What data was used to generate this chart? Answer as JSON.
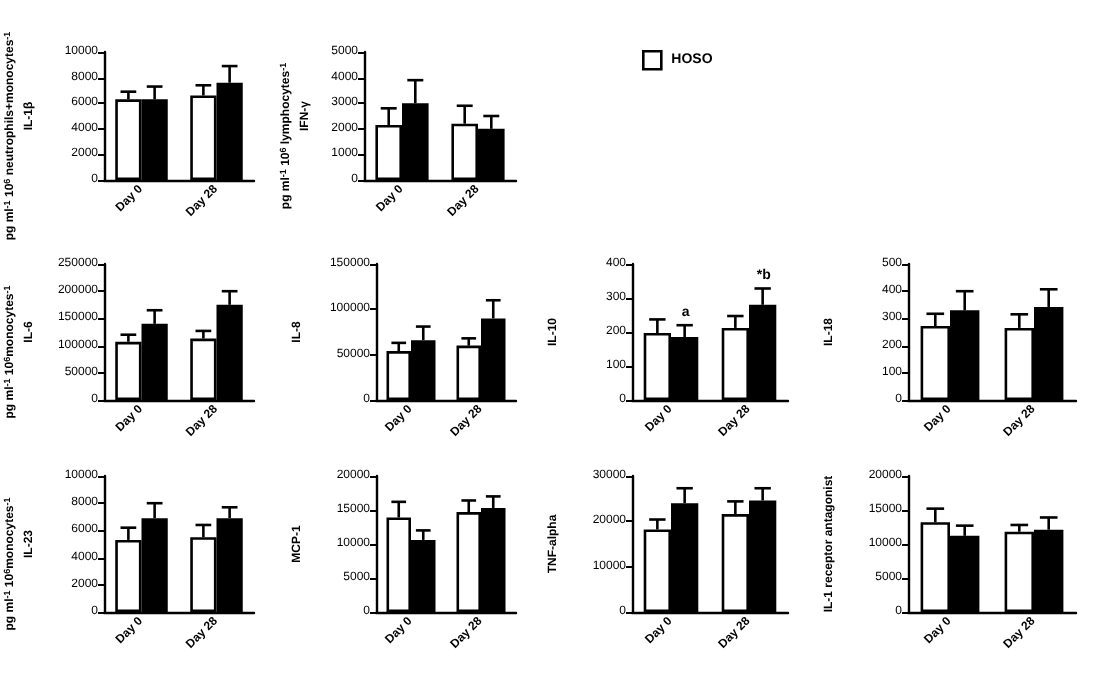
{
  "chart_data": [
    {
      "type": "bar",
      "ylabel": "IL-1β",
      "categories": [
        "Day 0",
        "Day 28"
      ],
      "ylim": [
        0,
        10000
      ],
      "yticks": [
        0,
        2000,
        4000,
        6000,
        8000,
        10000
      ],
      "grid": false,
      "legend": false,
      "annotations": [
        "pg ml$^{-1}$ 10$^{6}$ neutrophils+monocytes$^{-1}$"
      ],
      "series": [
        {
          "color": "#ffffff",
          "values": [
            6300,
            6600
          ],
          "errors": [
            [
              6300,
              6900
            ],
            [
              6600,
              7400
            ]
          ]
        },
        {
          "color": "#000000",
          "values": [
            6300,
            7600
          ],
          "errors": [
            [
              6300,
              7300
            ],
            [
              7600,
              8900
            ]
          ]
        }
      ]
    },
    {
      "type": "bar",
      "ylabel": "IFN-γ",
      "categories": [
        "Day 0",
        "Day 28"
      ],
      "ylim": [
        0,
        5000
      ],
      "yticks": [
        0,
        1000,
        2000,
        3000,
        4000,
        5000
      ],
      "grid": false,
      "legend": "right",
      "annotations": [
        "pg ml$^{-1}$ 10$^{6}$ lymphocytes$^{-1}$"
      ],
      "series": [
        {
          "name": "HOSO",
          "color": "#ffffff",
          "values": [
            2150,
            2200
          ],
          "errors": [
            [
              2150,
              2800
            ],
            [
              2200,
              2900
            ]
          ]
        },
        {
          "color": "#000000",
          "values": [
            3000,
            2000
          ],
          "errors": [
            [
              3000,
              3900
            ],
            [
              2000,
              2500
            ]
          ]
        }
      ]
    },
    {
      "type": "bar",
      "ylabel": "IL-6",
      "categories": [
        "Day 0",
        "Day 28"
      ],
      "ylim": [
        0,
        250000
      ],
      "yticks": [
        0,
        50000,
        100000,
        150000,
        200000,
        250000
      ],
      "grid": false,
      "legend": false,
      "annotations": [
        "pg ml$^{-1}$ 10$^{6}$monocytes$^{-1}$"
      ],
      "series": [
        {
          "color": "#ffffff",
          "values": [
            107000,
            113000
          ],
          "errors": [
            [
              107000,
              120000
            ],
            [
              113000,
              127000
            ]
          ]
        },
        {
          "color": "#000000",
          "values": [
            140000,
            175000
          ],
          "errors": [
            [
              140000,
              165000
            ],
            [
              175000,
              200000
            ]
          ]
        }
      ]
    },
    {
      "type": "bar",
      "ylabel": "IL-8",
      "categories": [
        "Day 0",
        "Day 28"
      ],
      "ylim": [
        0,
        150000
      ],
      "yticks": [
        0,
        50000,
        100000,
        150000
      ],
      "grid": false,
      "legend": false,
      "series": [
        {
          "color": "#ffffff",
          "values": [
            54000,
            60000
          ],
          "errors": [
            [
              54000,
              63000
            ],
            [
              60000,
              68000
            ]
          ]
        },
        {
          "color": "#000000",
          "values": [
            66000,
            90000
          ],
          "errors": [
            [
              66000,
              81000
            ],
            [
              90000,
              110000
            ]
          ]
        }
      ]
    },
    {
      "type": "bar",
      "ylabel": "IL-10",
      "categories": [
        "Day 0",
        "Day 28"
      ],
      "ylim": [
        0,
        400
      ],
      "yticks": [
        0,
        100,
        200,
        300,
        400
      ],
      "grid": false,
      "legend": false,
      "annotations": [
        {
          "text": "a",
          "x": "Day 0",
          "y": 235
        },
        {
          "text": "*b",
          "x": "Day 28",
          "y": 345
        }
      ],
      "series": [
        {
          "color": "#ffffff",
          "values": [
            197,
            212
          ],
          "errors": [
            [
              197,
              237
            ],
            [
              212,
              247
            ]
          ]
        },
        {
          "color": "#000000",
          "values": [
            185,
            280
          ],
          "errors": [
            [
              185,
              220
            ],
            [
              280,
              328
            ]
          ]
        }
      ]
    },
    {
      "type": "bar",
      "ylabel": "IL-18",
      "categories": [
        "Day 0",
        "Day 28"
      ],
      "ylim": [
        0,
        500
      ],
      "yticks": [
        0,
        100,
        200,
        300,
        400,
        500
      ],
      "grid": false,
      "legend": false,
      "series": [
        {
          "color": "#ffffff",
          "values": [
            272,
            265
          ],
          "errors": [
            [
              272,
              317
            ],
            [
              265,
              315
            ]
          ]
        },
        {
          "color": "#000000",
          "values": [
            330,
            342
          ],
          "errors": [
            [
              330,
              400
            ],
            [
              342,
              407
            ]
          ]
        }
      ]
    },
    {
      "type": "bar",
      "ylabel": "IL-23",
      "categories": [
        "Day 0",
        "Day 28"
      ],
      "ylim": [
        0,
        10000
      ],
      "yticks": [
        0,
        2000,
        4000,
        6000,
        8000,
        10000
      ],
      "grid": false,
      "legend": false,
      "annotations": [
        "pg ml$^{-1}$ 10$^{6}$monocytes$^{-1}$"
      ],
      "series": [
        {
          "color": "#ffffff",
          "values": [
            5300,
            5500
          ],
          "errors": [
            [
              5300,
              6200
            ],
            [
              5500,
              6400
            ]
          ]
        },
        {
          "color": "#000000",
          "values": [
            6900,
            6900
          ],
          "errors": [
            [
              6900,
              8000
            ],
            [
              6900,
              7700
            ]
          ]
        }
      ]
    },
    {
      "type": "bar",
      "ylabel": "MCP-1",
      "categories": [
        "Day 0",
        "Day 28"
      ],
      "ylim": [
        0,
        20000
      ],
      "yticks": [
        0,
        5000,
        10000,
        15000,
        20000
      ],
      "grid": false,
      "legend": false,
      "series": [
        {
          "color": "#ffffff",
          "values": [
            13900,
            14700
          ],
          "errors": [
            [
              13900,
              16200
            ],
            [
              14700,
              16400
            ]
          ]
        },
        {
          "color": "#000000",
          "values": [
            10600,
            15300
          ],
          "errors": [
            [
              10600,
              12000
            ],
            [
              15300,
              17000
            ]
          ]
        }
      ]
    },
    {
      "type": "bar",
      "ylabel": "TNF-alpha",
      "categories": [
        "Day 0",
        "Day 28"
      ],
      "ylim": [
        0,
        30000
      ],
      "yticks": [
        0,
        10000,
        20000,
        30000
      ],
      "grid": false,
      "legend": false,
      "series": [
        {
          "color": "#ffffff",
          "values": [
            18200,
            21600
          ],
          "errors": [
            [
              18200,
              20400
            ],
            [
              21600,
              24400
            ]
          ]
        },
        {
          "color": "#000000",
          "values": [
            24000,
            24600
          ],
          "errors": [
            [
              24000,
              27300
            ],
            [
              24600,
              27300
            ]
          ]
        }
      ]
    },
    {
      "type": "bar",
      "ylabel": "IL-1 receptor antagonist",
      "categories": [
        "Day 0",
        "Day 28"
      ],
      "ylim": [
        0,
        20000
      ],
      "yticks": [
        0,
        5000,
        10000,
        15000,
        20000
      ],
      "grid": false,
      "legend": false,
      "series": [
        {
          "color": "#ffffff",
          "values": [
            13200,
            11800
          ],
          "errors": [
            [
              13200,
              15200
            ],
            [
              11800,
              12800
            ]
          ]
        },
        {
          "color": "#000000",
          "values": [
            11200,
            12100
          ],
          "errors": [
            [
              11200,
              12700
            ],
            [
              12100,
              13900
            ]
          ]
        }
      ]
    }
  ]
}
